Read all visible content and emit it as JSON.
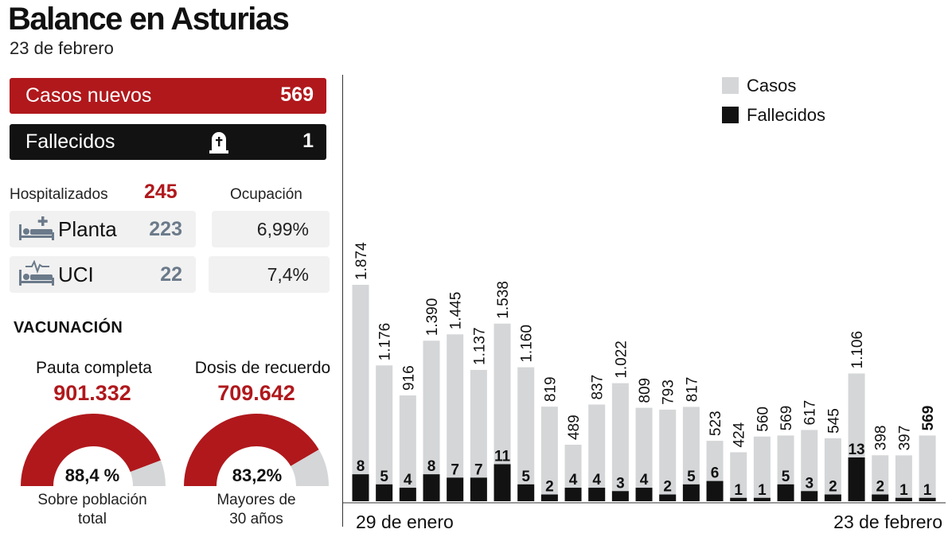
{
  "header": {
    "title": "Balance en Asturias",
    "subtitle": "23 de febrero"
  },
  "summary": {
    "casos_label": "Casos nuevos",
    "casos_value": "569",
    "fallecidos_label": "Fallecidos",
    "fallecidos_value": "1"
  },
  "hospital": {
    "label": "Hospitalizados",
    "total": "245",
    "occupancy_label": "Ocupación",
    "rows": [
      {
        "label": "Planta",
        "count": "223",
        "occupancy": "6,99%"
      },
      {
        "label": "UCI",
        "count": "22",
        "occupancy": "7,4%"
      }
    ]
  },
  "vaccination": {
    "title": "VACUNACIÓN",
    "gauges": [
      {
        "title": "Pauta completa",
        "value": "901.332",
        "percent_label": "88,4 %",
        "percent": 88.4,
        "caption_line1": "Sobre población",
        "caption_line2": "total"
      },
      {
        "title": "Dosis de recuerdo",
        "value": "709.642",
        "percent_label": "83,2%",
        "percent": 83.2,
        "caption_line1": "Mayores de",
        "caption_line2": "30 años"
      }
    ]
  },
  "colors": {
    "accent_red": "#b0181c",
    "dark": "#121212",
    "cases_gray": "#d4d6d8",
    "gauge_gray": "#d4d6d8"
  },
  "icons": {
    "deaths": "tombstone-icon",
    "ward": "hospital-bed-icon",
    "icu": "icu-bed-icon"
  },
  "chart_data": {
    "type": "bar",
    "legend": [
      "Casos",
      "Fallecidos"
    ],
    "legend_position": "top-right",
    "x_start_label": "29 de enero",
    "x_end_label": "23 de febrero",
    "series": [
      {
        "name": "Casos",
        "values": [
          1874,
          1176,
          916,
          1390,
          1445,
          1137,
          1538,
          1160,
          819,
          489,
          837,
          1022,
          809,
          793,
          817,
          523,
          424,
          560,
          569,
          617,
          545,
          1106,
          398,
          397,
          569
        ],
        "labels": [
          "1.874",
          "1.176",
          "916",
          "1.390",
          "1.445",
          "1.137",
          "1.538",
          "1.160",
          "819",
          "489",
          "837",
          "1.022",
          "809",
          "793",
          "817",
          "523",
          "424",
          "560",
          "569",
          "617",
          "545",
          "1.106",
          "398",
          "397",
          "569"
        ]
      },
      {
        "name": "Fallecidos",
        "values": [
          8,
          5,
          4,
          8,
          7,
          7,
          11,
          5,
          2,
          4,
          4,
          3,
          4,
          2,
          5,
          6,
          1,
          1,
          5,
          3,
          2,
          13,
          2,
          1,
          1
        ]
      }
    ]
  }
}
